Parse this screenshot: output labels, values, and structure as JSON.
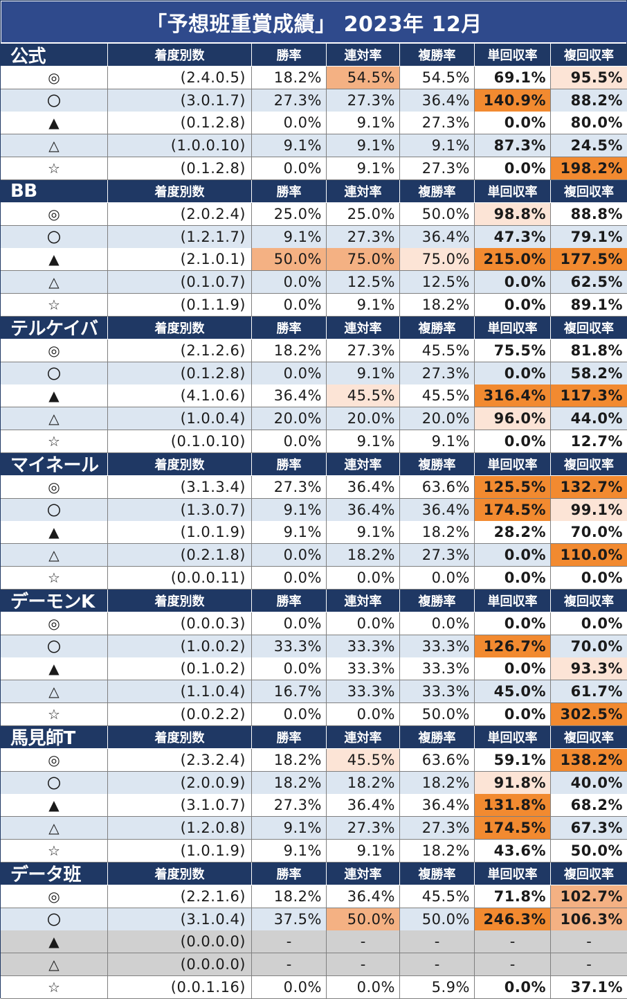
{
  "title": "「予想班重賞成績」 2023年  12月",
  "headers": [
    "着度別数",
    "勝率",
    "連対率",
    "複勝率",
    "単回収率",
    "複回収率"
  ],
  "colors": {
    "header_bg": "#1f3864",
    "title_bg": "#2f4a8c",
    "row_alt": "#dce6f1",
    "gray_row": "#d0d0d0",
    "hl_light": "#fce4d6",
    "hl_mid": "#f4b183",
    "hl_strong": "#f28a30"
  },
  "groups": [
    {
      "name": "公式",
      "rows": [
        {
          "mark": "◎",
          "counts": "(2.4.0.5)",
          "win": "18.2%",
          "rentai": "54.5%",
          "fukusho": "54.5%",
          "tan": "69.1%",
          "fuku": "95.5%",
          "hl": {
            "rentai": "mid",
            "fuku": "light"
          }
        },
        {
          "mark": "〇",
          "counts": "(3.0.1.7)",
          "win": "27.3%",
          "rentai": "27.3%",
          "fukusho": "36.4%",
          "tan": "140.9%",
          "fuku": "88.2%",
          "hl": {
            "tan": "strong"
          }
        },
        {
          "mark": "▲",
          "counts": "(0.1.2.8)",
          "win": "0.0%",
          "rentai": "9.1%",
          "fukusho": "27.3%",
          "tan": "0.0%",
          "fuku": "80.0%",
          "hl": {}
        },
        {
          "mark": "△",
          "counts": "(1.0.0.10)",
          "win": "9.1%",
          "rentai": "9.1%",
          "fukusho": "9.1%",
          "tan": "87.3%",
          "fuku": "24.5%",
          "hl": {}
        },
        {
          "mark": "☆",
          "counts": "(0.1.2.8)",
          "win": "0.0%",
          "rentai": "9.1%",
          "fukusho": "27.3%",
          "tan": "0.0%",
          "fuku": "198.2%",
          "hl": {
            "fuku": "strong"
          }
        }
      ]
    },
    {
      "name": "BB",
      "rows": [
        {
          "mark": "◎",
          "counts": "(2.0.2.4)",
          "win": "25.0%",
          "rentai": "25.0%",
          "fukusho": "50.0%",
          "tan": "98.8%",
          "fuku": "88.8%",
          "hl": {
            "tan": "light"
          }
        },
        {
          "mark": "〇",
          "counts": "(1.2.1.7)",
          "win": "9.1%",
          "rentai": "27.3%",
          "fukusho": "36.4%",
          "tan": "47.3%",
          "fuku": "79.1%",
          "hl": {}
        },
        {
          "mark": "▲",
          "counts": "(2.1.0.1)",
          "win": "50.0%",
          "rentai": "75.0%",
          "fukusho": "75.0%",
          "tan": "215.0%",
          "fuku": "177.5%",
          "hl": {
            "win": "mid",
            "rentai": "mid",
            "fukusho": "light",
            "tan": "strong",
            "fuku": "strong"
          }
        },
        {
          "mark": "△",
          "counts": "(0.1.0.7)",
          "win": "0.0%",
          "rentai": "12.5%",
          "fukusho": "12.5%",
          "tan": "0.0%",
          "fuku": "62.5%",
          "hl": {}
        },
        {
          "mark": "☆",
          "counts": "(0.1.1.9)",
          "win": "0.0%",
          "rentai": "9.1%",
          "fukusho": "18.2%",
          "tan": "0.0%",
          "fuku": "89.1%",
          "hl": {}
        }
      ]
    },
    {
      "name": "テルケイバ",
      "rows": [
        {
          "mark": "◎",
          "counts": "(2.1.2.6)",
          "win": "18.2%",
          "rentai": "27.3%",
          "fukusho": "45.5%",
          "tan": "75.5%",
          "fuku": "81.8%",
          "hl": {}
        },
        {
          "mark": "〇",
          "counts": "(0.1.2.8)",
          "win": "0.0%",
          "rentai": "9.1%",
          "fukusho": "27.3%",
          "tan": "0.0%",
          "fuku": "58.2%",
          "hl": {}
        },
        {
          "mark": "▲",
          "counts": "(4.1.0.6)",
          "win": "36.4%",
          "rentai": "45.5%",
          "fukusho": "45.5%",
          "tan": "316.4%",
          "fuku": "117.3%",
          "hl": {
            "rentai": "light",
            "tan": "strong",
            "fuku": "strong"
          }
        },
        {
          "mark": "△",
          "counts": "(1.0.0.4)",
          "win": "20.0%",
          "rentai": "20.0%",
          "fukusho": "20.0%",
          "tan": "96.0%",
          "fuku": "44.0%",
          "hl": {
            "tan": "light"
          }
        },
        {
          "mark": "☆",
          "counts": "(0.1.0.10)",
          "win": "0.0%",
          "rentai": "9.1%",
          "fukusho": "9.1%",
          "tan": "0.0%",
          "fuku": "12.7%",
          "hl": {}
        }
      ]
    },
    {
      "name": "マイネール",
      "rows": [
        {
          "mark": "◎",
          "counts": "(3.1.3.4)",
          "win": "27.3%",
          "rentai": "36.4%",
          "fukusho": "63.6%",
          "tan": "125.5%",
          "fuku": "132.7%",
          "hl": {
            "tan": "strong",
            "fuku": "strong"
          }
        },
        {
          "mark": "〇",
          "counts": "(1.3.0.7)",
          "win": "9.1%",
          "rentai": "36.4%",
          "fukusho": "36.4%",
          "tan": "174.5%",
          "fuku": "99.1%",
          "hl": {
            "tan": "strong",
            "fuku": "light"
          }
        },
        {
          "mark": "▲",
          "counts": "(1.0.1.9)",
          "win": "9.1%",
          "rentai": "9.1%",
          "fukusho": "18.2%",
          "tan": "28.2%",
          "fuku": "70.0%",
          "hl": {}
        },
        {
          "mark": "△",
          "counts": "(0.2.1.8)",
          "win": "0.0%",
          "rentai": "18.2%",
          "fukusho": "27.3%",
          "tan": "0.0%",
          "fuku": "110.0%",
          "hl": {
            "fuku": "strong"
          }
        },
        {
          "mark": "☆",
          "counts": "(0.0.0.11)",
          "win": "0.0%",
          "rentai": "0.0%",
          "fukusho": "0.0%",
          "tan": "0.0%",
          "fuku": "0.0%",
          "hl": {}
        }
      ]
    },
    {
      "name": "デーモンK",
      "rows": [
        {
          "mark": "◎",
          "counts": "(0.0.0.3)",
          "win": "0.0%",
          "rentai": "0.0%",
          "fukusho": "0.0%",
          "tan": "0.0%",
          "fuku": "0.0%",
          "hl": {}
        },
        {
          "mark": "〇",
          "counts": "(1.0.0.2)",
          "win": "33.3%",
          "rentai": "33.3%",
          "fukusho": "33.3%",
          "tan": "126.7%",
          "fuku": "70.0%",
          "hl": {
            "tan": "strong"
          }
        },
        {
          "mark": "▲",
          "counts": "(0.1.0.2)",
          "win": "0.0%",
          "rentai": "33.3%",
          "fukusho": "33.3%",
          "tan": "0.0%",
          "fuku": "93.3%",
          "hl": {
            "fuku": "light"
          }
        },
        {
          "mark": "△",
          "counts": "(1.1.0.4)",
          "win": "16.7%",
          "rentai": "33.3%",
          "fukusho": "33.3%",
          "tan": "45.0%",
          "fuku": "61.7%",
          "hl": {}
        },
        {
          "mark": "☆",
          "counts": "(0.0.2.2)",
          "win": "0.0%",
          "rentai": "0.0%",
          "fukusho": "50.0%",
          "tan": "0.0%",
          "fuku": "302.5%",
          "hl": {
            "fuku": "strong"
          }
        }
      ]
    },
    {
      "name": "馬見師T",
      "rows": [
        {
          "mark": "◎",
          "counts": "(2.3.2.4)",
          "win": "18.2%",
          "rentai": "45.5%",
          "fukusho": "63.6%",
          "tan": "59.1%",
          "fuku": "138.2%",
          "hl": {
            "rentai": "light",
            "fuku": "strong"
          }
        },
        {
          "mark": "〇",
          "counts": "(2.0.0.9)",
          "win": "18.2%",
          "rentai": "18.2%",
          "fukusho": "18.2%",
          "tan": "91.8%",
          "fuku": "40.0%",
          "hl": {
            "tan": "light"
          }
        },
        {
          "mark": "▲",
          "counts": "(3.1.0.7)",
          "win": "27.3%",
          "rentai": "36.4%",
          "fukusho": "36.4%",
          "tan": "131.8%",
          "fuku": "68.2%",
          "hl": {
            "tan": "strong"
          }
        },
        {
          "mark": "△",
          "counts": "(1.2.0.8)",
          "win": "9.1%",
          "rentai": "27.3%",
          "fukusho": "27.3%",
          "tan": "174.5%",
          "fuku": "67.3%",
          "hl": {
            "tan": "strong"
          }
        },
        {
          "mark": "☆",
          "counts": "(1.0.1.9)",
          "win": "9.1%",
          "rentai": "9.1%",
          "fukusho": "18.2%",
          "tan": "43.6%",
          "fuku": "50.0%",
          "hl": {}
        }
      ]
    },
    {
      "name": "データ班",
      "rows": [
        {
          "mark": "◎",
          "counts": "(2.2.1.6)",
          "win": "18.2%",
          "rentai": "36.4%",
          "fukusho": "45.5%",
          "tan": "71.8%",
          "fuku": "102.7%",
          "hl": {
            "fuku": "mid"
          }
        },
        {
          "mark": "〇",
          "counts": "(3.1.0.4)",
          "win": "37.5%",
          "rentai": "50.0%",
          "fukusho": "50.0%",
          "tan": "246.3%",
          "fuku": "106.3%",
          "hl": {
            "rentai": "mid",
            "tan": "strong",
            "fuku": "mid"
          }
        },
        {
          "mark": "▲",
          "counts": "(0.0.0.0)",
          "win": "-",
          "rentai": "-",
          "fukusho": "-",
          "tan": "-",
          "fuku": "-",
          "gray": true,
          "hl": {}
        },
        {
          "mark": "△",
          "counts": "(0.0.0.0)",
          "win": "-",
          "rentai": "-",
          "fukusho": "-",
          "tan": "-",
          "fuku": "-",
          "gray": true,
          "hl": {}
        },
        {
          "mark": "☆",
          "counts": "(0.0.1.16)",
          "win": "0.0%",
          "rentai": "0.0%",
          "fukusho": "5.9%",
          "tan": "0.0%",
          "fuku": "37.1%",
          "hl": {}
        }
      ]
    }
  ]
}
